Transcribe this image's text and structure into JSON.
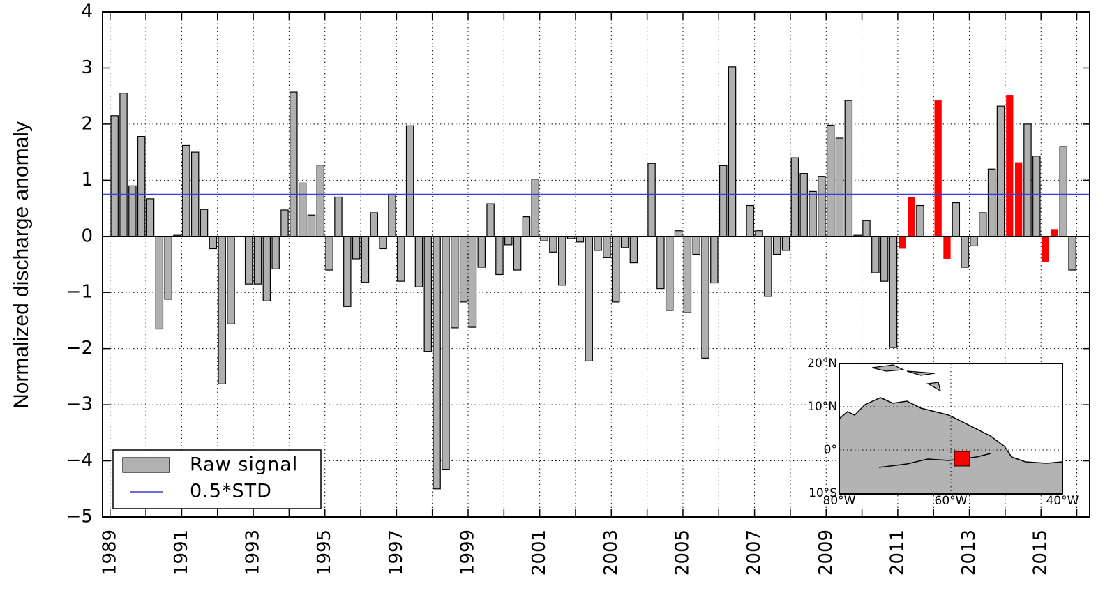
{
  "chart_data": {
    "type": "bar",
    "ylabel": "Normalized discharge anomaly",
    "xlim": [
      1988.79,
      2016.36
    ],
    "ylim": [
      -5,
      4
    ],
    "xticks": [
      1989,
      1991,
      1993,
      1995,
      1997,
      1999,
      2001,
      2003,
      2005,
      2007,
      2009,
      2011,
      2013,
      2015
    ],
    "xminor": [
      1990,
      1992,
      1994,
      1996,
      1998,
      2000,
      2002,
      2004,
      2006,
      2008,
      2010,
      2012,
      2014,
      2016
    ],
    "yticks": [
      {
        "value": -5,
        "label": "−5"
      },
      {
        "value": -4,
        "label": "−4"
      },
      {
        "value": -3,
        "label": "−3"
      },
      {
        "value": -2,
        "label": "−2"
      },
      {
        "value": -1,
        "label": "−1"
      },
      0,
      1,
      2,
      3,
      4
    ],
    "grid": true,
    "legend": "lower left",
    "series": [
      {
        "name": "Raw signal",
        "color": "#b0b0b0",
        "x": [
          1989.125,
          1989.375,
          1989.625,
          1989.875,
          1990.125,
          1990.375,
          1990.625,
          1990.875,
          1991.125,
          1991.375,
          1991.625,
          1991.875,
          1992.125,
          1992.375,
          1992.875,
          1993.125,
          1993.375,
          1993.625,
          1993.875,
          1994.125,
          1994.375,
          1994.625,
          1994.875,
          1995.125,
          1995.375,
          1995.625,
          1995.875,
          1996.125,
          1996.375,
          1996.625,
          1996.875,
          1997.125,
          1997.375,
          1997.625,
          1997.875,
          1998.125,
          1998.375,
          1998.625,
          1998.875,
          1999.125,
          1999.375,
          1999.625,
          1999.875,
          2000.125,
          2000.375,
          2000.625,
          2000.875,
          2001.125,
          2001.375,
          2001.625,
          2001.875,
          2002.125,
          2002.375,
          2002.625,
          2002.875,
          2003.125,
          2003.375,
          2003.625,
          2004.125,
          2004.375,
          2004.625,
          2004.875,
          2005.125,
          2005.375,
          2005.625,
          2005.875,
          2006.125,
          2006.375,
          2006.875,
          2007.125,
          2007.375,
          2007.625,
          2007.875,
          2008.125,
          2008.375,
          2008.625,
          2008.875,
          2009.125,
          2009.375,
          2009.625,
          2009.875,
          2010.125,
          2010.375,
          2010.625,
          2010.875,
          2011.625,
          2012.625,
          2012.875,
          2013.125,
          2013.375,
          2013.625,
          2013.875,
          2014.625,
          2014.875,
          2015.625,
          2015.875
        ],
        "values": [
          2.15,
          2.55,
          0.9,
          1.78,
          0.67,
          -1.65,
          -1.12,
          0.02,
          1.62,
          1.5,
          0.48,
          -0.22,
          -2.63,
          -1.56,
          -0.85,
          -0.85,
          -1.15,
          -0.58,
          0.47,
          2.57,
          0.95,
          0.38,
          1.27,
          -0.6,
          0.7,
          -1.25,
          -0.4,
          -0.82,
          0.42,
          -0.22,
          0.75,
          -0.8,
          1.97,
          -0.9,
          -2.05,
          -4.5,
          -4.15,
          -1.63,
          -1.17,
          -1.62,
          -0.55,
          0.58,
          -0.68,
          -0.15,
          -0.6,
          0.35,
          1.02,
          -0.08,
          -0.28,
          -0.87,
          -0.04,
          -0.1,
          -2.22,
          -0.25,
          -0.38,
          -1.17,
          -0.2,
          -0.47,
          1.3,
          -0.93,
          -1.32,
          0.1,
          -1.36,
          -0.32,
          -2.17,
          -0.83,
          1.26,
          3.02,
          0.55,
          0.1,
          -1.07,
          -0.32,
          -0.25,
          1.4,
          1.12,
          0.8,
          1.07,
          1.98,
          1.75,
          2.42,
          0.02,
          0.28,
          -0.65,
          -0.8,
          -1.98,
          0.55,
          0.6,
          -0.55,
          -0.17,
          0.42,
          1.2,
          2.32,
          2.0,
          1.43,
          1.6,
          -0.6
        ]
      },
      {
        "color": "#ff0000",
        "x": [
          2011.125,
          2011.375,
          2012.125,
          2012.375,
          2014.125,
          2014.375,
          2015.125,
          2015.375
        ],
        "values": [
          -0.22,
          0.7,
          2.42,
          -0.4,
          2.52,
          1.32,
          -0.45,
          0.13
        ]
      }
    ],
    "threshold": {
      "name": "0.5*STD",
      "value": 0.75,
      "color": "#3a3ad8"
    },
    "inset": {
      "lat_labels": [
        "20°N",
        "10°N",
        "0°",
        "10°S"
      ],
      "lon_labels": [
        "80°W",
        "60°W",
        "40°W"
      ]
    }
  }
}
